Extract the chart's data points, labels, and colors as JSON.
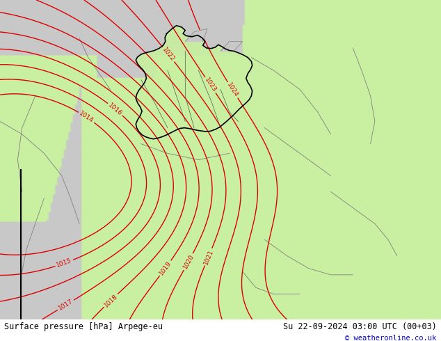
{
  "title_left": "Surface pressure [hPa] Arpege-eu",
  "title_right": "Su 22-09-2024 03:00 UTC (00+03)",
  "copyright": "© weatheronline.co.uk",
  "sea_color": "#c8c8c8",
  "land_color": "#c8f0a0",
  "germany_fill": "#b8e890",
  "germany_border": "#000000",
  "country_border": "#808080",
  "contour_color": "#dd0000",
  "bottom_bar_color": "#ffffff",
  "bottom_text_color": "#000000",
  "copyright_color": "#0000cc",
  "figwidth": 6.34,
  "figheight": 4.9,
  "dpi": 100
}
